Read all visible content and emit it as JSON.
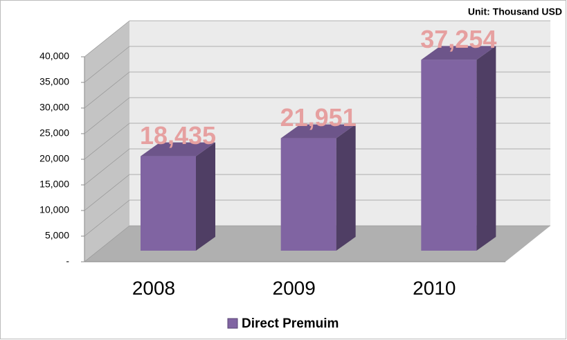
{
  "chart_data": {
    "type": "bar3d",
    "unit_note": "Unit: Thousand USD",
    "categories": [
      "2008",
      "2009",
      "2010"
    ],
    "series": [
      {
        "name": "Direct Premuim",
        "color": "#8064a2",
        "values": [
          18435,
          21951,
          37254
        ],
        "value_labels": [
          "18,435",
          "21,951",
          "37,254"
        ]
      }
    ],
    "value_label_color": "#e6a0a0",
    "ylim": [
      0,
      40000
    ],
    "yticks": [
      {
        "value": 0,
        "label": "-"
      },
      {
        "value": 5000,
        "label": "5,000"
      },
      {
        "value": 10000,
        "label": "10,000"
      },
      {
        "value": 15000,
        "label": "15,000"
      },
      {
        "value": 20000,
        "label": "20,000"
      },
      {
        "value": 25000,
        "label": "25,000"
      },
      {
        "value": 30000,
        "label": "30,000"
      },
      {
        "value": 35000,
        "label": "35,000"
      },
      {
        "value": 40000,
        "label": "40,000"
      }
    ],
    "grid": true,
    "legend": "bottom"
  }
}
